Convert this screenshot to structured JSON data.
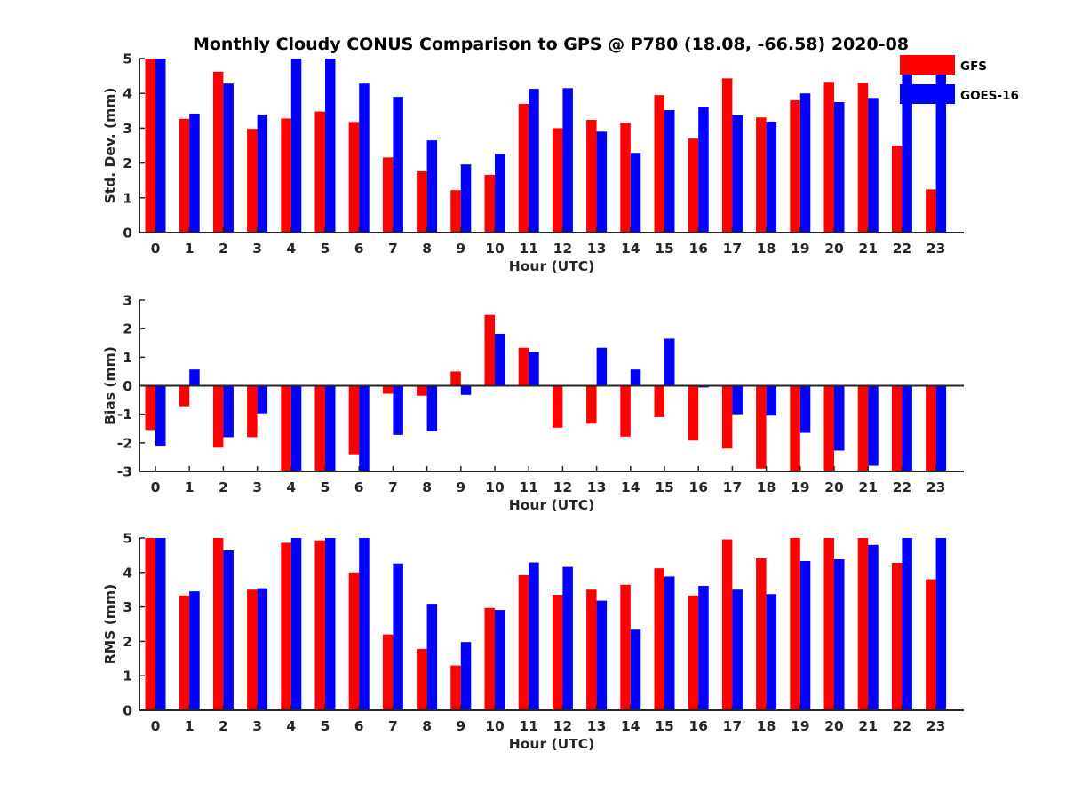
{
  "title": "Monthly Cloudy CONUS Comparison to GPS @ P780 (18.08, -66.58) 2020-08",
  "legend": {
    "placement": "top-right",
    "entries": [
      {
        "name": "GFS",
        "color": "#ff0000"
      },
      {
        "name": "GOES-16",
        "color": "#0000ff"
      }
    ]
  },
  "chart_data": [
    {
      "type": "bar",
      "xlabel": "Hour (UTC)",
      "ylabel": "Std. Dev. (mm)",
      "ylim": [
        0,
        5
      ],
      "yticks": [
        0,
        1,
        2,
        3,
        4,
        5
      ],
      "grid": false,
      "categories": [
        "0",
        "1",
        "2",
        "3",
        "4",
        "5",
        "6",
        "7",
        "8",
        "9",
        "10",
        "11",
        "12",
        "13",
        "14",
        "15",
        "16",
        "17",
        "18",
        "19",
        "20",
        "21",
        "22",
        "23"
      ],
      "series": [
        {
          "name": "GFS",
          "color": "#ff0000",
          "values": [
            5,
            3.27,
            4.62,
            2.98,
            3.28,
            3.48,
            3.18,
            2.16,
            1.76,
            1.22,
            1.66,
            3.7,
            3.0,
            3.24,
            3.16,
            3.95,
            2.7,
            4.43,
            3.31,
            3.8,
            4.33,
            4.3,
            2.5,
            1.24
          ]
        },
        {
          "name": "GOES-16",
          "color": "#0000ff",
          "values": [
            5,
            3.42,
            4.28,
            3.39,
            5,
            5,
            4.28,
            3.9,
            2.65,
            1.96,
            2.26,
            4.13,
            4.15,
            2.9,
            2.29,
            3.52,
            3.62,
            3.37,
            3.19,
            4.0,
            3.75,
            3.87,
            4.64,
            5
          ]
        }
      ]
    },
    {
      "type": "bar",
      "xlabel": "Hour (UTC)",
      "ylabel": "Bias (mm)",
      "ylim": [
        -3,
        3
      ],
      "yticks": [
        -3,
        -2,
        -1,
        0,
        1,
        2,
        3
      ],
      "grid": false,
      "zero_line": true,
      "categories": [
        "0",
        "1",
        "2",
        "3",
        "4",
        "5",
        "6",
        "7",
        "8",
        "9",
        "10",
        "11",
        "12",
        "13",
        "14",
        "15",
        "16",
        "17",
        "18",
        "19",
        "20",
        "21",
        "22",
        "23"
      ],
      "series": [
        {
          "name": "GFS",
          "color": "#ff0000",
          "values": [
            -1.55,
            -0.72,
            -2.17,
            -1.8,
            -3,
            -3,
            -2.4,
            -0.28,
            -0.35,
            0.5,
            2.48,
            1.33,
            -1.47,
            -1.33,
            -1.78,
            -1.1,
            -1.92,
            -2.2,
            -2.9,
            -3,
            -3,
            -3,
            -3,
            -3
          ]
        },
        {
          "name": "GOES-16",
          "color": "#0000ff",
          "values": [
            -2.1,
            0.57,
            -1.8,
            -0.97,
            -3,
            -3,
            -3,
            -1.72,
            -1.6,
            -0.32,
            1.82,
            1.18,
            0,
            1.33,
            0.57,
            1.65,
            -0.06,
            -1.0,
            -1.05,
            -1.65,
            -2.27,
            -2.8,
            -3,
            -3
          ]
        }
      ]
    },
    {
      "type": "bar",
      "xlabel": "Hour (UTC)",
      "ylabel": "RMS (mm)",
      "ylim": [
        0,
        5
      ],
      "yticks": [
        0,
        1,
        2,
        3,
        4,
        5
      ],
      "grid": false,
      "categories": [
        "0",
        "1",
        "2",
        "3",
        "4",
        "5",
        "6",
        "7",
        "8",
        "9",
        "10",
        "11",
        "12",
        "13",
        "14",
        "15",
        "16",
        "17",
        "18",
        "19",
        "20",
        "21",
        "22",
        "23"
      ],
      "series": [
        {
          "name": "GFS",
          "color": "#ff0000",
          "values": [
            5,
            3.33,
            5,
            3.5,
            4.86,
            4.93,
            4.0,
            2.2,
            1.78,
            1.3,
            2.97,
            3.92,
            3.35,
            3.5,
            3.64,
            4.12,
            3.33,
            4.96,
            4.41,
            5,
            5,
            5,
            4.28,
            3.8
          ]
        },
        {
          "name": "GOES-16",
          "color": "#0000ff",
          "values": [
            5,
            3.45,
            4.64,
            3.54,
            5,
            5,
            5,
            4.26,
            3.09,
            1.98,
            2.91,
            4.29,
            4.16,
            3.18,
            2.34,
            3.88,
            3.61,
            3.5,
            3.37,
            4.33,
            4.38,
            4.8,
            5,
            5
          ]
        }
      ]
    }
  ]
}
